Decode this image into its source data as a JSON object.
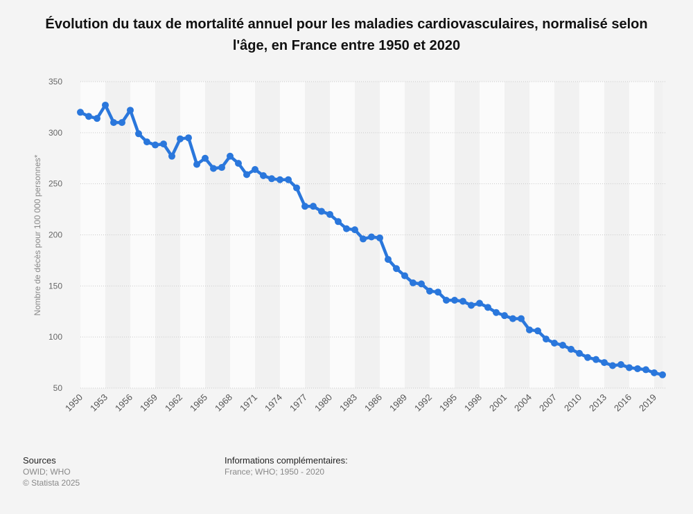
{
  "chart_data": {
    "type": "line",
    "title": "Évolution du taux de mortalité annuel pour les maladies cardiovasculaires, normalisé selon l'âge, en France entre 1950 et 2020",
    "xlabel": "",
    "ylabel": "Nombre de décès pour 100 000 personnes*",
    "ylim": [
      50,
      350
    ],
    "yticks": [
      50,
      100,
      150,
      200,
      250,
      300,
      350
    ],
    "xticks": [
      "1950",
      "1953",
      "1956",
      "1959",
      "1962",
      "1965",
      "1968",
      "1971",
      "1974",
      "1977",
      "1980",
      "1983",
      "1986",
      "1989",
      "1992",
      "1995",
      "1998",
      "2001",
      "2004",
      "2007",
      "2010",
      "2013",
      "2016",
      "2019"
    ],
    "grid": true,
    "legend": "none",
    "color": "#2a77dc",
    "series": [
      {
        "name": "Taux de mortalité",
        "x": [
          1950,
          1951,
          1952,
          1953,
          1954,
          1955,
          1956,
          1957,
          1958,
          1959,
          1960,
          1961,
          1962,
          1963,
          1964,
          1965,
          1966,
          1967,
          1968,
          1969,
          1970,
          1971,
          1972,
          1973,
          1974,
          1975,
          1976,
          1977,
          1978,
          1979,
          1980,
          1981,
          1982,
          1983,
          1984,
          1985,
          1986,
          1987,
          1988,
          1989,
          1990,
          1991,
          1992,
          1993,
          1994,
          1995,
          1996,
          1997,
          1998,
          1999,
          2000,
          2001,
          2002,
          2003,
          2004,
          2005,
          2006,
          2007,
          2008,
          2009,
          2010,
          2011,
          2012,
          2013,
          2014,
          2015,
          2016,
          2017,
          2018,
          2019,
          2020
        ],
        "values": [
          320,
          316,
          314,
          327,
          310,
          310,
          322,
          299,
          291,
          288,
          289,
          277,
          294,
          295,
          269,
          275,
          265,
          266,
          277,
          270,
          259,
          264,
          258,
          255,
          254,
          254,
          246,
          228,
          228,
          223,
          220,
          213,
          206,
          205,
          196,
          198,
          197,
          176,
          167,
          160,
          153,
          152,
          145,
          144,
          136,
          136,
          135,
          131,
          133,
          129,
          124,
          121,
          118,
          118,
          107,
          106,
          98,
          94,
          92,
          88,
          84,
          80,
          78,
          75,
          72,
          73,
          70,
          69,
          68,
          65,
          63
        ]
      }
    ]
  },
  "footer": {
    "sources_title": "Sources",
    "sources_line1": "OWID; WHO",
    "sources_line2": "© Statista 2025",
    "info_title": "Informations complémentaires:",
    "info_text": "France; WHO; 1950 - 2020"
  }
}
